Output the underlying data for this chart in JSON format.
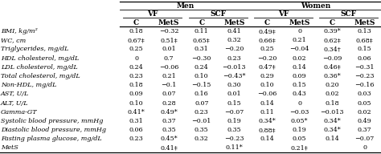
{
  "rows": [
    "BMI, kg/m²",
    "WC, cm",
    "Triglycerides, mg/dL",
    "HDL cholesterol, mg/dL",
    "LDL cholesterol, mg/dL",
    "Total cholesterol, mg/dL",
    "Non-HDL, mg/dL",
    "AST, U/L",
    "ALT, U/L",
    "Gamma-GT",
    "Systolic blood pressure, mmHg",
    "Diastolic blood pressure, mmHg",
    "Fasting plasma glucose, mg/dL",
    "MetS"
  ],
  "men_vf_c": [
    "0.18",
    "0.67‡",
    "0.25",
    "0",
    "0.24",
    "0.23",
    "0.18",
    "0.09",
    "0.10",
    "0.41*",
    "0.31",
    "0.06",
    "0.23",
    ""
  ],
  "men_vf_mets": [
    "−0.32",
    "0.51‡",
    "0.01",
    "0.7",
    "−0.06",
    "0.21",
    "−0.1",
    "0.07",
    "0.28",
    "0.49*",
    "0.37",
    "0.35",
    "0.45*",
    "0.41‡"
  ],
  "men_scf_c": [
    "0.11",
    "0.65‡",
    "0.31",
    "−0.30",
    "0.24",
    "0.10",
    "−0.15",
    "0.16",
    "0.07",
    "0.23",
    "−0.01",
    "0.35",
    "0.32",
    ""
  ],
  "men_scf_mets": [
    "0.41",
    "0.32",
    "−0.20",
    "0.23",
    "−0.013",
    "−0.43*",
    "0.30",
    "0.01",
    "0.15",
    "−0.07",
    "0.19",
    "0.35",
    "−0.23",
    "0.11*"
  ],
  "women_vf_c": [
    "0.49‡",
    "0.66‡",
    "0.25",
    "−0.20",
    "0.47‡",
    "0.29",
    "0.10",
    "−0.06",
    "0.14",
    "0.11",
    "0.34*",
    "0.88‡",
    "0.14",
    ""
  ],
  "women_vf_mets": [
    "0",
    "0.21",
    "−0.04",
    "0.02",
    "0.14",
    "0.09",
    "0.15",
    "0.43",
    "0",
    "−0.03",
    "0.05*",
    "0.19",
    "0.05",
    "0.21‡"
  ],
  "women_scf_c": [
    "0.39*",
    "0.62‡",
    "0.34†",
    "−0.09",
    "0.46‡",
    "0.36*",
    "0.20",
    "0.02",
    "0.18",
    "−0.013",
    "0.34*",
    "0.34*",
    "0.14",
    ""
  ],
  "women_scf_mets": [
    "0.13",
    "0.68‡",
    "0.15",
    "0.06",
    "−0.31",
    "−0.23",
    "−0.16",
    "0.03",
    "0.05",
    "0.02",
    "0.49",
    "0.37",
    "−0.07",
    "0"
  ],
  "font_size": 5.8,
  "header_font_size": 6.5
}
